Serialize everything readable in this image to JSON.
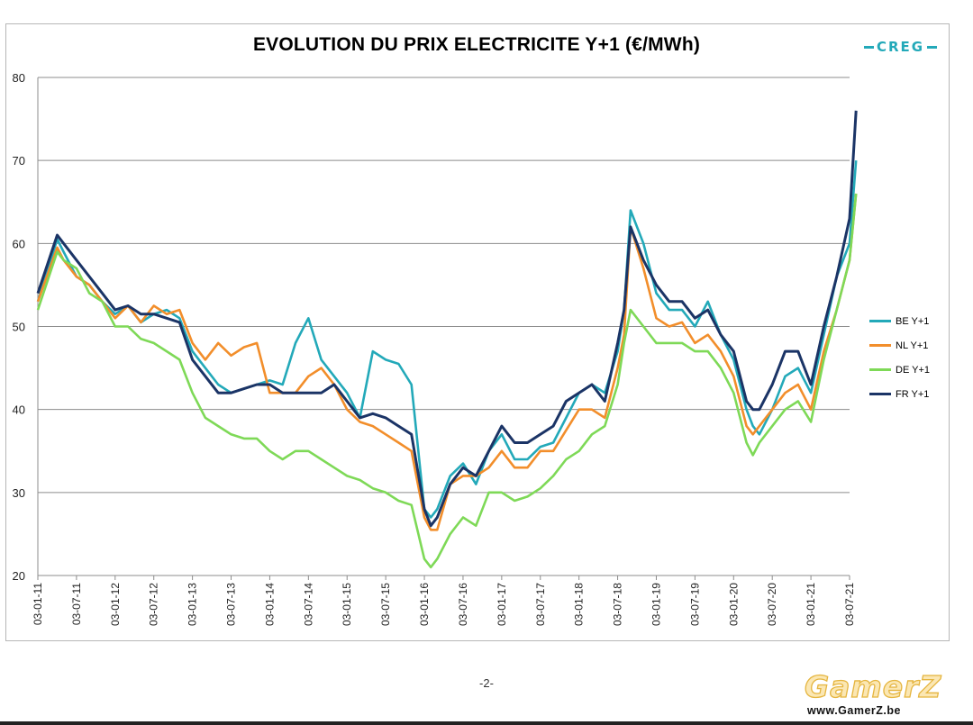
{
  "page": {
    "number": "-2-"
  },
  "brand": {
    "logo_text": "CREG",
    "logo_color": "#23a9b9"
  },
  "watermark": {
    "text": "GamerZ",
    "url": "www.GamerZ.be"
  },
  "chart_data": {
    "type": "line",
    "title": "EVOLUTION DU PRIX ELECTRICITE Y+1 (€/MWh)",
    "xlabel": "",
    "ylabel": "",
    "ylim": [
      20,
      80
    ],
    "yticks": [
      20,
      30,
      40,
      50,
      60,
      70,
      80
    ],
    "grid": true,
    "legend_position": "right",
    "x_ticks": [
      "03-01-11",
      "03-07-11",
      "03-01-12",
      "03-07-12",
      "03-01-13",
      "03-07-13",
      "03-01-14",
      "03-07-14",
      "03-01-15",
      "03-07-15",
      "03-01-16",
      "03-07-16",
      "03-01-17",
      "03-07-17",
      "03-01-18",
      "03-07-18",
      "03-01-19",
      "03-07-19",
      "03-01-20",
      "03-07-20",
      "03-01-21",
      "03-07-21"
    ],
    "x": [
      "2011-01",
      "2011-04",
      "2011-05",
      "2011-07",
      "2011-09",
      "2011-11",
      "2012-01",
      "2012-03",
      "2012-05",
      "2012-07",
      "2012-09",
      "2012-11",
      "2013-01",
      "2013-03",
      "2013-05",
      "2013-07",
      "2013-09",
      "2013-11",
      "2014-01",
      "2014-03",
      "2014-05",
      "2014-07",
      "2014-09",
      "2014-11",
      "2015-01",
      "2015-03",
      "2015-05",
      "2015-07",
      "2015-09",
      "2015-11",
      "2016-01",
      "2016-02",
      "2016-03",
      "2016-05",
      "2016-07",
      "2016-09",
      "2016-11",
      "2017-01",
      "2017-03",
      "2017-05",
      "2017-07",
      "2017-09",
      "2017-11",
      "2018-01",
      "2018-03",
      "2018-05",
      "2018-07",
      "2018-08",
      "2018-09",
      "2018-11",
      "2019-01",
      "2019-03",
      "2019-05",
      "2019-07",
      "2019-09",
      "2019-11",
      "2020-01",
      "2020-03",
      "2020-04",
      "2020-05",
      "2020-07",
      "2020-09",
      "2020-11",
      "2021-01",
      "2021-03",
      "2021-05",
      "2021-07",
      "2021-08"
    ],
    "series": [
      {
        "name": "BE Y+1",
        "color": "#23a9b9",
        "values": [
          53,
          60.5,
          59,
          56,
          55,
          53,
          51.5,
          52.5,
          50.5,
          51.5,
          52,
          51,
          47,
          45,
          43,
          42,
          42.5,
          43,
          43.5,
          43,
          48,
          51,
          46,
          44,
          42,
          39,
          47,
          46,
          45.5,
          43,
          28,
          27,
          28,
          32,
          33.5,
          31,
          35,
          37,
          34,
          34,
          35.5,
          36,
          39,
          42,
          43,
          42,
          47,
          52,
          64,
          60,
          54,
          52,
          52,
          50,
          53,
          49,
          46,
          40,
          38,
          37,
          40,
          44,
          45,
          42,
          49,
          56,
          60,
          70
        ]
      },
      {
        "name": "NL Y+1",
        "color": "#f28e2b",
        "values": [
          53,
          59.5,
          58,
          56,
          55,
          53,
          51,
          52.5,
          50.5,
          52.5,
          51.5,
          52,
          48,
          46,
          48,
          46.5,
          47.5,
          48,
          42,
          42,
          42,
          44,
          45,
          43,
          40,
          38.5,
          38,
          37,
          36,
          35,
          27,
          25.5,
          25.5,
          31,
          32,
          32,
          33,
          35,
          33,
          33,
          35,
          35,
          37.5,
          40,
          40,
          39,
          45,
          49,
          62,
          57,
          51,
          50,
          50.5,
          48,
          49,
          47,
          44,
          38,
          37,
          38,
          40,
          42,
          43,
          40,
          47,
          52,
          58,
          66
        ]
      },
      {
        "name": "DE Y+1",
        "color": "#7ed957",
        "values": [
          52,
          59,
          58,
          57,
          54,
          53,
          50,
          50,
          48.5,
          48,
          47,
          46,
          42,
          39,
          38,
          37,
          36.5,
          36.5,
          35,
          34,
          35,
          35,
          34,
          33,
          32,
          31.5,
          30.5,
          30,
          29,
          28.5,
          22,
          21,
          22,
          25,
          27,
          26,
          30,
          30,
          29,
          29.5,
          30.5,
          32,
          34,
          35,
          37,
          38,
          43,
          48,
          52,
          50,
          48,
          48,
          48,
          47,
          47,
          45,
          42,
          36,
          34.5,
          36,
          38,
          40,
          41,
          38.5,
          46,
          52,
          58,
          66
        ]
      },
      {
        "name": "FR Y+1",
        "color": "#1b3466",
        "values": [
          54,
          61,
          60,
          58,
          56,
          54,
          52,
          52.5,
          51.5,
          51.5,
          51,
          50.5,
          46,
          44,
          42,
          42,
          42.5,
          43,
          43,
          42,
          42,
          42,
          42,
          43,
          41,
          39,
          39.5,
          39,
          38,
          37,
          28,
          26,
          27,
          31,
          33,
          32,
          35,
          38,
          36,
          36,
          37,
          38,
          41,
          42,
          43,
          41,
          48,
          52,
          62,
          58,
          55,
          53,
          53,
          51,
          52,
          49,
          47,
          41,
          40,
          40,
          43,
          47,
          47,
          43,
          50,
          56,
          63,
          76
        ]
      }
    ]
  }
}
